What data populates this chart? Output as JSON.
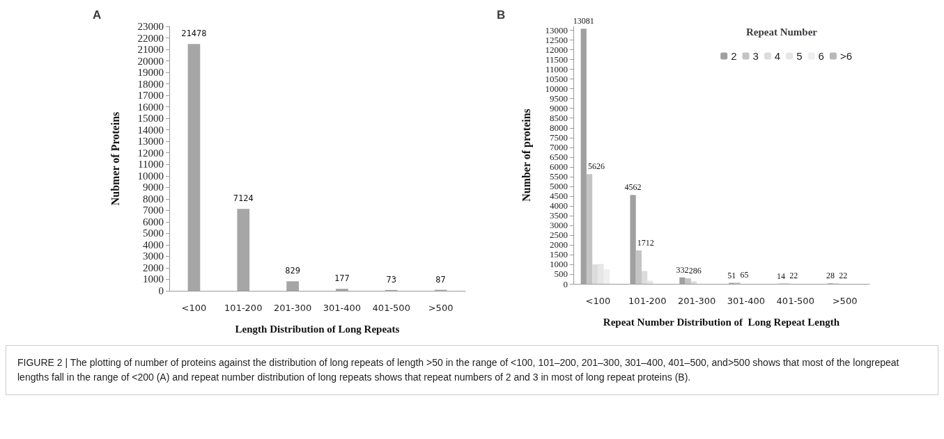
{
  "chart_data": [
    {
      "type": "bar",
      "title": "A",
      "xlabel": "Length Distribution of Long Repeats",
      "ylabel": "Nubmer of Proteins",
      "categories": [
        "<100",
        "101-200",
        "201-300",
        "301-400",
        "401-500",
        ">500"
      ],
      "values": [
        21478,
        7124,
        829,
        177,
        73,
        87
      ],
      "color": "#a6a6a6",
      "data_labels": true,
      "ylim": [
        0,
        23000
      ],
      "yticks": [
        0,
        1000,
        2000,
        3000,
        4000,
        5000,
        6000,
        7000,
        8000,
        9000,
        10000,
        11000,
        12000,
        13000,
        14000,
        15000,
        16000,
        17000,
        18000,
        19000,
        20000,
        21000,
        22000,
        23000
      ],
      "grid": false,
      "legend": false,
      "annotations": [
        "FIGURE 2 | The plotting of number of proteins against the distribution of long repeats of length >50 in the range of <100, 101–200, 201–300, 301–400, 401–500, and>500 shows that most of the longrepeat lengths fall in the range of <200 (A) and repeat number distribution of long repeats shows that repeat numbers of 2 and 3 in most of long repeat proteins (B)."
      ]
    },
    {
      "type": "bar",
      "title": "B",
      "xlabel": "Repeat Number Distribution of  Long Repeat Length",
      "ylabel": "Number of proteins",
      "legend_title": "Repeat Number",
      "categories": [
        "<100",
        "101-200",
        "201-300",
        "301-400",
        "401-500",
        ">500"
      ],
      "series": [
        {
          "name": "2",
          "color": "#a0a0a0",
          "values": [
            13081,
            4562,
            332,
            51,
            14,
            28
          ],
          "value_labels": [
            "13081",
            "4562",
            "332",
            "51",
            "14",
            "28"
          ]
        },
        {
          "name": "3",
          "color": "#c4c4c4",
          "values": [
            5626,
            1712,
            286,
            65,
            22,
            22
          ],
          "value_labels": [
            "5626",
            "1712",
            "286",
            "65",
            "22",
            "22"
          ]
        },
        {
          "name": "4",
          "color": "#dcdcdc",
          "values": [
            1000,
            660,
            130,
            0,
            0,
            0
          ]
        },
        {
          "name": "5",
          "color": "#e6e6e6",
          "values": [
            1020,
            160,
            0,
            0,
            0,
            0
          ]
        },
        {
          "name": "6",
          "color": "#efefef",
          "values": [
            750,
            0,
            0,
            0,
            0,
            0
          ]
        },
        {
          "name": ">6",
          "color": "#b8b8b8",
          "values": [
            0,
            0,
            0,
            0,
            0,
            0
          ]
        }
      ],
      "ylim": [
        0,
        13200
      ],
      "yticks": [
        0,
        500,
        1000,
        1500,
        2000,
        2500,
        3000,
        3500,
        4000,
        4500,
        5000,
        5500,
        6000,
        6500,
        7000,
        7500,
        8000,
        8500,
        9000,
        9500,
        10000,
        10500,
        11000,
        11500,
        12000,
        12500,
        13000
      ],
      "grid": false,
      "legend": "top right"
    }
  ]
}
